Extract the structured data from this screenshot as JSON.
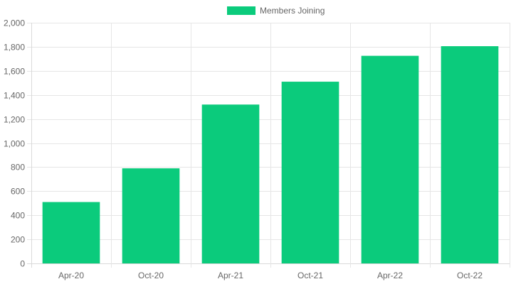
{
  "chart_data": {
    "type": "bar",
    "categories": [
      "Apr-20",
      "Oct-20",
      "Apr-21",
      "Oct-21",
      "Apr-22",
      "Oct-22"
    ],
    "series": [
      {
        "name": "Members Joining",
        "values": [
          510,
          790,
          1320,
          1510,
          1725,
          1805
        ],
        "color": "#0bcb7c"
      }
    ],
    "ylim": [
      0,
      2000
    ],
    "yticks": [
      "0",
      "200",
      "400",
      "600",
      "800",
      "1,000",
      "1,200",
      "1,400",
      "1,600",
      "1,800",
      "2,000"
    ],
    "grid": true,
    "legend_position": "top"
  }
}
